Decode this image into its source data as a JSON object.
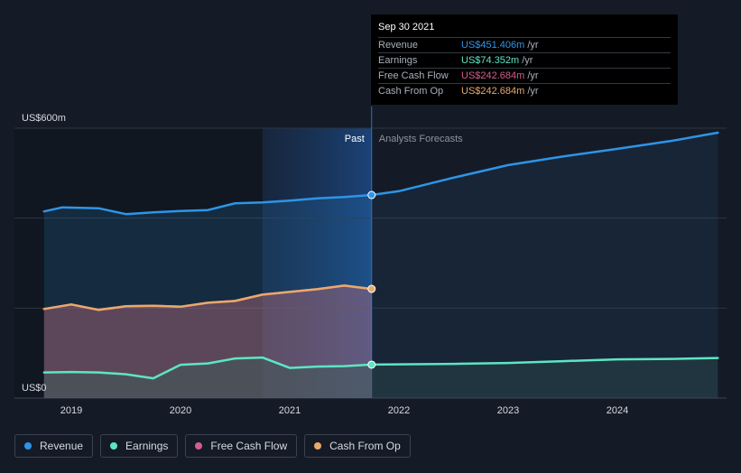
{
  "colors": {
    "revenue": "#2d95e8",
    "earnings": "#5ee5c4",
    "free_cash_flow": "#d45d8b",
    "cash_from_op": "#e9a96a",
    "past_highlight": "#1c3b63"
  },
  "chart_data": {
    "type": "line",
    "y_unit_labels": {
      "top": "US$600m",
      "bottom": "US$0"
    },
    "ylim": [
      0,
      600
    ],
    "x_ticks": [
      "2019",
      "2020",
      "2021",
      "2022",
      "2023",
      "2024"
    ],
    "divider_labels": {
      "past": "Past",
      "forecast": "Analysts Forecasts"
    },
    "divider_date": 2021.75,
    "series": [
      {
        "name": "Revenue",
        "color_key": "revenue",
        "points": [
          [
            2018.75,
            415
          ],
          [
            2018.92,
            424
          ],
          [
            2019.25,
            422
          ],
          [
            2019.5,
            409
          ],
          [
            2019.75,
            413
          ],
          [
            2020.0,
            416
          ],
          [
            2020.25,
            418
          ],
          [
            2020.5,
            433
          ],
          [
            2020.75,
            435
          ],
          [
            2021.0,
            439
          ],
          [
            2021.25,
            444
          ],
          [
            2021.5,
            447
          ],
          [
            2021.75,
            451.406
          ]
        ],
        "forecast": [
          [
            2021.75,
            451.406
          ],
          [
            2022.0,
            460
          ],
          [
            2022.5,
            490
          ],
          [
            2023.0,
            518
          ],
          [
            2023.5,
            537
          ],
          [
            2024.0,
            554
          ],
          [
            2024.5,
            572
          ],
          [
            2024.92,
            590
          ]
        ]
      },
      {
        "name": "Earnings",
        "color_key": "earnings",
        "points": [
          [
            2018.75,
            57
          ],
          [
            2019.0,
            58
          ],
          [
            2019.25,
            57
          ],
          [
            2019.5,
            53
          ],
          [
            2019.75,
            44
          ],
          [
            2020.0,
            74
          ],
          [
            2020.25,
            77
          ],
          [
            2020.5,
            88
          ],
          [
            2020.75,
            90
          ],
          [
            2021.0,
            67
          ],
          [
            2021.25,
            70
          ],
          [
            2021.5,
            71
          ],
          [
            2021.75,
            74.352
          ]
        ],
        "forecast": [
          [
            2021.75,
            74.352
          ],
          [
            2022.0,
            75
          ],
          [
            2022.5,
            76
          ],
          [
            2023.0,
            78
          ],
          [
            2023.5,
            82
          ],
          [
            2024.0,
            86
          ],
          [
            2024.5,
            87
          ],
          [
            2024.92,
            89
          ]
        ]
      },
      {
        "name": "Free Cash Flow",
        "color_key": "free_cash_flow",
        "points": [
          [
            2018.75,
            198
          ],
          [
            2019.0,
            208
          ],
          [
            2019.25,
            196
          ],
          [
            2019.5,
            204
          ],
          [
            2019.75,
            205
          ],
          [
            2020.0,
            203
          ],
          [
            2020.25,
            212
          ],
          [
            2020.5,
            216
          ],
          [
            2020.75,
            230
          ],
          [
            2021.0,
            236
          ],
          [
            2021.25,
            242
          ],
          [
            2021.5,
            250
          ],
          [
            2021.75,
            242.684
          ]
        ]
      },
      {
        "name": "Cash From Op",
        "color_key": "cash_from_op",
        "points": [
          [
            2018.75,
            198
          ],
          [
            2019.0,
            208
          ],
          [
            2019.25,
            196
          ],
          [
            2019.5,
            204
          ],
          [
            2019.75,
            205
          ],
          [
            2020.0,
            203
          ],
          [
            2020.25,
            212
          ],
          [
            2020.5,
            216
          ],
          [
            2020.75,
            230
          ],
          [
            2021.0,
            236
          ],
          [
            2021.25,
            242
          ],
          [
            2021.5,
            250
          ],
          [
            2021.75,
            242.684
          ]
        ]
      }
    ],
    "tooltip": {
      "date": "Sep 30 2021",
      "rows": [
        {
          "label": "Revenue",
          "value": "US$451.406m",
          "unit": "/yr",
          "color_key": "revenue"
        },
        {
          "label": "Earnings",
          "value": "US$74.352m",
          "unit": "/yr",
          "color_key": "earnings"
        },
        {
          "label": "Free Cash Flow",
          "value": "US$242.684m",
          "unit": "/yr",
          "color_key": "free_cash_flow"
        },
        {
          "label": "Cash From Op",
          "value": "US$242.684m",
          "unit": "/yr",
          "color_key": "cash_from_op"
        }
      ]
    },
    "legend": [
      {
        "label": "Revenue",
        "color_key": "revenue"
      },
      {
        "label": "Earnings",
        "color_key": "earnings"
      },
      {
        "label": "Free Cash Flow",
        "color_key": "free_cash_flow"
      },
      {
        "label": "Cash From Op",
        "color_key": "cash_from_op"
      }
    ]
  }
}
